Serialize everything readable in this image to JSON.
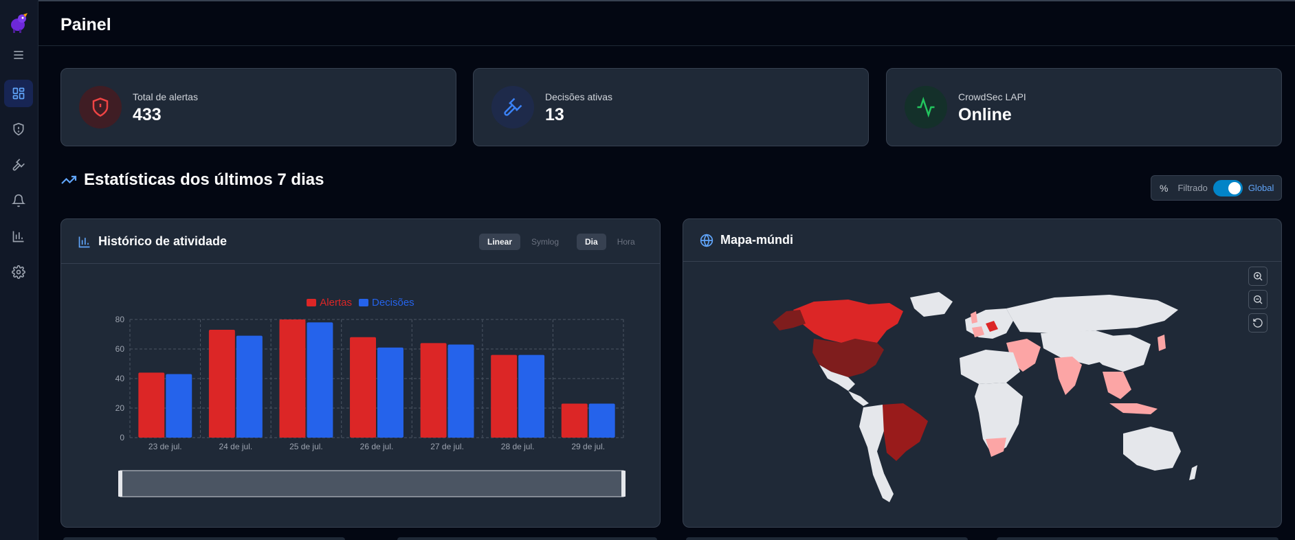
{
  "header": {
    "title": "Painel"
  },
  "sidebar": {
    "items": [
      {
        "name": "menu-icon"
      },
      {
        "name": "dashboard-icon",
        "active": true
      },
      {
        "name": "shield-icon"
      },
      {
        "name": "gavel-icon"
      },
      {
        "name": "bell-icon"
      },
      {
        "name": "bar-chart-icon"
      },
      {
        "name": "gear-icon"
      }
    ]
  },
  "stats": [
    {
      "label": "Total de alertas",
      "value": "433",
      "icon": "shield-alert-icon",
      "color": "#ef4444"
    },
    {
      "label": "Decisões ativas",
      "value": "13",
      "icon": "gavel-icon",
      "color": "#3b82f6"
    },
    {
      "label": "CrowdSec LAPI",
      "value": "Online",
      "icon": "activity-icon",
      "color": "#22c55e"
    }
  ],
  "section": {
    "title": "Estatísticas dos últimos 7 dias"
  },
  "mode_toggle": {
    "percent_symbol": "%",
    "off_label": "Filtrado",
    "on_label": "Global",
    "global_enabled": true
  },
  "activity_panel": {
    "title": "Histórico de atividade",
    "scale_options": [
      "Linear",
      "Symlog"
    ],
    "scale_selected": "Linear",
    "granularity_options": [
      "Dia",
      "Hora"
    ],
    "granularity_selected": "Dia"
  },
  "map_panel": {
    "title": "Mapa-múndi"
  },
  "colors": {
    "alerts": "#dc2626",
    "decisions": "#2563eb",
    "accent": "#60a5fa"
  },
  "chart_data": {
    "type": "bar",
    "categories": [
      "23 de jul.",
      "24 de jul.",
      "25 de jul.",
      "26 de jul.",
      "27 de jul.",
      "28 de jul.",
      "29 de jul."
    ],
    "series": [
      {
        "name": "Alertas",
        "values": [
          44,
          73,
          80,
          68,
          64,
          56,
          23
        ],
        "color": "#dc2626"
      },
      {
        "name": "Decisões",
        "values": [
          43,
          69,
          78,
          61,
          63,
          56,
          23
        ],
        "color": "#2563eb"
      }
    ],
    "yticks": [
      0,
      20,
      40,
      60,
      80
    ],
    "ylim": [
      0,
      80
    ],
    "grid": true,
    "legend": "top-center"
  }
}
